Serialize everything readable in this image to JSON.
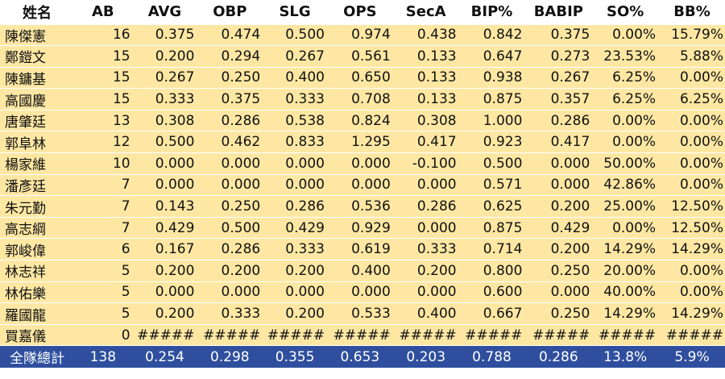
{
  "headers": [
    "姓名",
    "AB",
    "AVG",
    "OBP",
    "SLG",
    "OPS",
    "SecA",
    "BIP%",
    "BABIP",
    "SO%",
    "BB%"
  ],
  "rows": [
    [
      "陳傑憲",
      "16",
      "0.375",
      "0.474",
      "0.500",
      "0.974",
      "0.438",
      "0.842",
      "0.375",
      "0.00%",
      "15.79%"
    ],
    [
      "鄭鎧文",
      "15",
      "0.200",
      "0.294",
      "0.267",
      "0.561",
      "0.133",
      "0.647",
      "0.273",
      "23.53%",
      "5.88%"
    ],
    [
      "陳鏞基",
      "15",
      "0.267",
      "0.250",
      "0.400",
      "0.650",
      "0.133",
      "0.938",
      "0.267",
      "6.25%",
      "0.00%"
    ],
    [
      "高國慶",
      "15",
      "0.333",
      "0.375",
      "0.333",
      "0.708",
      "0.133",
      "0.875",
      "0.357",
      "6.25%",
      "6.25%"
    ],
    [
      "唐肇廷",
      "13",
      "0.308",
      "0.286",
      "0.538",
      "0.824",
      "0.308",
      "1.000",
      "0.286",
      "0.00%",
      "0.00%"
    ],
    [
      "郭阜林",
      "12",
      "0.500",
      "0.462",
      "0.833",
      "1.295",
      "0.417",
      "0.923",
      "0.417",
      "0.00%",
      "0.00%"
    ],
    [
      "楊家維",
      "10",
      "0.000",
      "0.000",
      "0.000",
      "0.000",
      "-0.100",
      "0.500",
      "0.000",
      "50.00%",
      "0.00%"
    ],
    [
      "潘彥廷",
      "7",
      "0.000",
      "0.000",
      "0.000",
      "0.000",
      "0.000",
      "0.571",
      "0.000",
      "42.86%",
      "0.00%"
    ],
    [
      "朱元勤",
      "7",
      "0.143",
      "0.250",
      "0.286",
      "0.536",
      "0.286",
      "0.625",
      "0.200",
      "25.00%",
      "12.50%"
    ],
    [
      "高志綱",
      "7",
      "0.429",
      "0.500",
      "0.429",
      "0.929",
      "0.000",
      "0.875",
      "0.429",
      "0.00%",
      "12.50%"
    ],
    [
      "郭峻偉",
      "6",
      "0.167",
      "0.286",
      "0.333",
      "0.619",
      "0.333",
      "0.714",
      "0.200",
      "14.29%",
      "14.29%"
    ],
    [
      "林志祥",
      "5",
      "0.200",
      "0.200",
      "0.200",
      "0.400",
      "0.200",
      "0.800",
      "0.250",
      "20.00%",
      "0.00%"
    ],
    [
      "林佑樂",
      "5",
      "0.000",
      "0.000",
      "0.000",
      "0.000",
      "0.000",
      "0.600",
      "0.000",
      "40.00%",
      "0.00%"
    ],
    [
      "羅國龍",
      "5",
      "0.200",
      "0.333",
      "0.200",
      "0.533",
      "0.400",
      "0.667",
      "0.250",
      "14.29%",
      "14.29%"
    ],
    [
      "買嘉儀",
      "0",
      "#####",
      "#####",
      "#####",
      "#####",
      "#####",
      "#####",
      "#####",
      "#####",
      "#####"
    ]
  ],
  "total": [
    "全隊總計",
    "138",
    "0.254",
    "0.298",
    "0.355",
    "0.653",
    "0.203",
    "0.788",
    "0.286",
    "13.8%",
    "5.9%"
  ],
  "colors": {
    "row_bg": "#fde7a3",
    "total_bg": "#2f4f9e",
    "total_text": "#ffffff"
  }
}
